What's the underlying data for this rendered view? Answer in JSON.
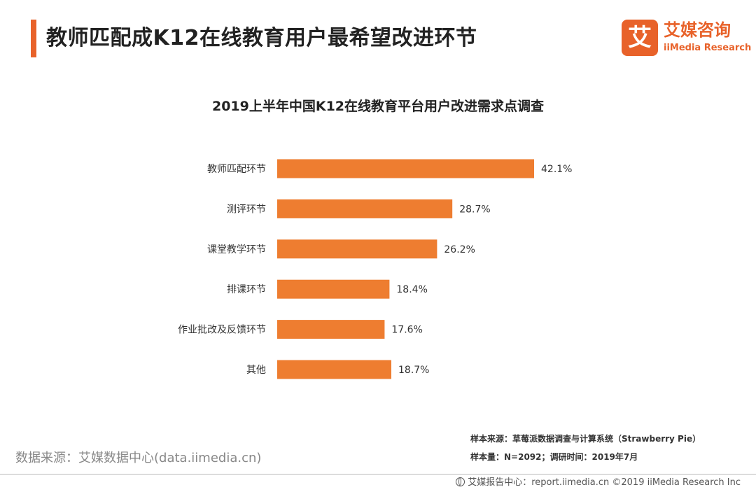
{
  "header": {
    "title": "教师匹配成K12在线教育用户最希望改进环节"
  },
  "logo": {
    "mark": "艾",
    "name_cn": "艾媒咨询",
    "name_en": "iiMedia Research"
  },
  "colors": {
    "accent": "#E8622A",
    "bar": "#EE7D30",
    "logo": "#E8622A"
  },
  "chart_data": {
    "type": "bar",
    "orientation": "horizontal",
    "title": "2019上半年中国K12在线教育平台用户改进需求点调查",
    "categories": [
      "教师匹配环节",
      "测评环节",
      "课堂教学环节",
      "排课环节",
      "作业批改及反馈环节",
      "其他"
    ],
    "values": [
      42.1,
      28.7,
      26.2,
      18.4,
      17.6,
      18.7
    ],
    "value_labels": [
      "42.1%",
      "28.7%",
      "26.2%",
      "18.4%",
      "17.6%",
      "18.7%"
    ],
    "unit": "%",
    "xlim": [
      0,
      45
    ],
    "grid": false,
    "legend": "none"
  },
  "notes": {
    "sample_source": "样本来源：草莓派数据调查与计算系统（Strawberry  Pie）",
    "sample_info": "样本量：N=2092；调研时间：2019年7月"
  },
  "source": {
    "text": "数据来源：艾媒数据中心(data.iimedia.cn)"
  },
  "footer": {
    "icon": "globe-icon",
    "text": "艾媒报告中心：report.iimedia.cn  ©2019  iiMedia Research Inc"
  }
}
